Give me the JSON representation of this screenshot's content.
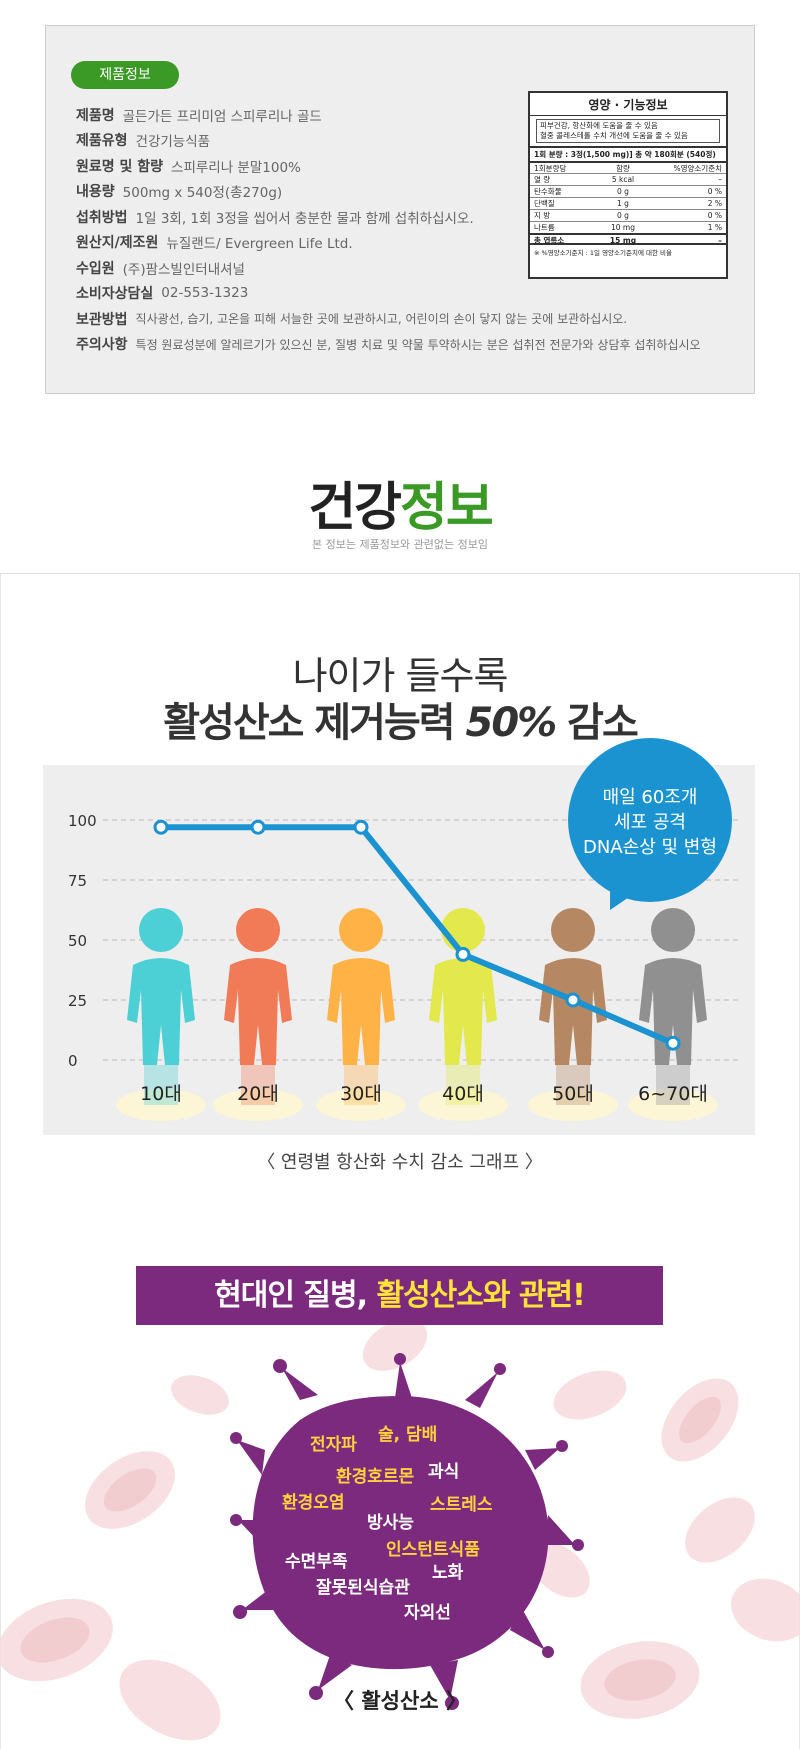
{
  "product": {
    "badge": "제품정보",
    "rows": [
      {
        "label": "제품명",
        "value": "골든가든 프리미엄 스피루리나 골드"
      },
      {
        "label": "제품유형",
        "value": "건강기능식품"
      },
      {
        "label": "원료명 및 함량",
        "value": "스피루리나 분말100%"
      },
      {
        "label": "내용량",
        "value": "500mg x 540정(총270g)"
      },
      {
        "label": "섭취방법",
        "value": "1일 3회, 1회 3정을 씹어서 충분한 물과 함께 섭취하십시오."
      },
      {
        "label": "원산지/제조원",
        "value": "뉴질랜드/ Evergreen Life Ltd."
      },
      {
        "label": "수입원",
        "value": "(주)팜스빌인터내셔널"
      },
      {
        "label": "소비자상담실",
        "value": "02-553-1323"
      },
      {
        "label": "보관방법",
        "value": "직사광선, 습기, 고온을 피해 서늘한 곳에 보관하시고, 어린이의 손이 닿지 않는 곳에 보관하십시오."
      },
      {
        "label": "주의사항",
        "value": "특정 원료성분에 알레르기가 있으신 분, 질병 치료 및 약물 투약하시는 분은 섭취전 전문가와 상담후 섭취하십시오"
      }
    ]
  },
  "nutrition": {
    "title": "영양 · 기능정보",
    "claims": [
      "피부건강, 항산화에 도움을 줄 수 있음",
      "혈중 콜레스테롤 수치 개선에 도움을 줄 수 있음"
    ],
    "serving": "1회 분량 : 3정(1,500 mg)] 총 약 180회분 (540정)",
    "header": [
      "1회분량당",
      "함량",
      "%영양소기준치"
    ],
    "rows": [
      [
        "열 량",
        "5 kcal",
        "–"
      ],
      [
        "탄수화물",
        "0 g",
        "0 %"
      ],
      [
        "단백질",
        "1 g",
        "2 %"
      ],
      [
        "지 방",
        "0 g",
        "0 %"
      ],
      [
        "나트륨",
        "10 mg",
        "1 %"
      ],
      [
        "총 엽록소",
        "15 mg",
        "–"
      ]
    ],
    "footnote": "※ %영양소기준치 : 1일 영양소기준치에 대한 비율"
  },
  "health": {
    "title_black": "건강",
    "title_green": "정보",
    "subtitle": "본 정보는 제품정보와 관련없는 정보임"
  },
  "headline": {
    "line1": "나이가 들수록",
    "line2_a": "활성산소 제거능력 ",
    "line2_b": "50%",
    "line2_c": " 감소"
  },
  "bubble": {
    "line1": "매일 60조개",
    "line2": "세포 공격",
    "line3": "DNA손상 및 변형"
  },
  "chart_data": {
    "type": "line",
    "categories": [
      "10대",
      "20대",
      "30대",
      "40대",
      "50대",
      "6~70대"
    ],
    "values": [
      97,
      97,
      97,
      44,
      25,
      7
    ],
    "yticks": [
      100,
      75,
      50,
      25,
      0
    ],
    "ylim": [
      0,
      100
    ],
    "grid": true,
    "figure_colors": [
      "#4cd0d5",
      "#f07b56",
      "#ffb347",
      "#e3e94c",
      "#b58762",
      "#909090"
    ],
    "line_color": "#1b93d1"
  },
  "caption": "〈 연령별 항산화 수치 감소 그래프 〉",
  "disease": {
    "banner_white": "현대인 질병, ",
    "banner_yellow": "활성산소와 관련!",
    "words": [
      "전자파",
      "술, 담배",
      "환경호르몬",
      "과식",
      "환경오염",
      "스트레스",
      "방사능",
      "인스턴트식품",
      "수면부족",
      "노화",
      "잘못된식습관",
      "자외선"
    ],
    "label": "〈 활성산소 〉",
    "virus_color": "#7b2a7e"
  }
}
